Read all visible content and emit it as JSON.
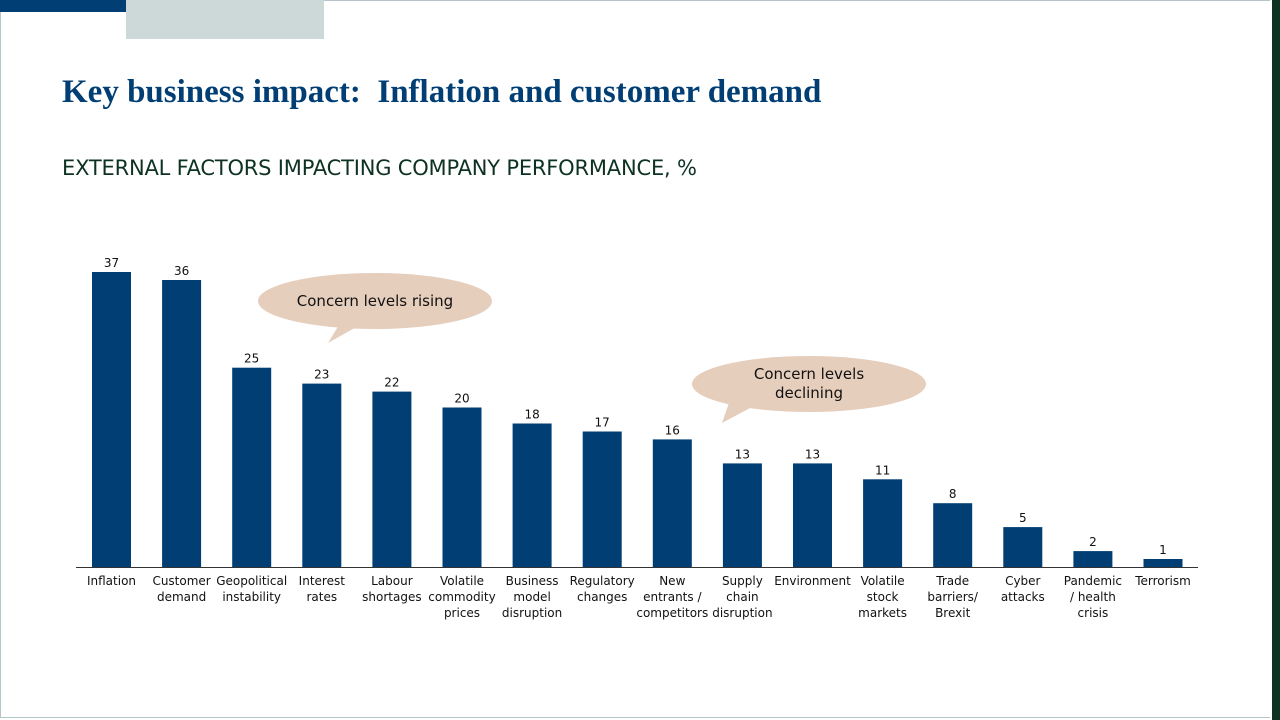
{
  "slide": {
    "title": "Key business impact:  Inflation and customer demand",
    "subtitle": "EXTERNAL FACTORS IMPACTING COMPANY PERFORMANCE, %"
  },
  "callouts": [
    {
      "text": "Concern levels rising"
    },
    {
      "text": "Concern levels\ndeclining"
    }
  ],
  "colors": {
    "bar": "#003e74",
    "callout_fill": "#e6cebd",
    "title": "#003e74",
    "subtitle": "#0d3222"
  },
  "chart_data": {
    "type": "bar",
    "title": "EXTERNAL FACTORS IMPACTING COMPANY PERFORMANCE, %",
    "categories": [
      "Inflation",
      "Customer demand",
      "Geopolitical instability",
      "Interest rates",
      "Labour shortages",
      "Volatile commodity prices",
      "Business model disruption",
      "Regulatory changes",
      "New entrants / competitors",
      "Supply chain disruption",
      "Environment",
      "Volatile stock markets",
      "Trade barriers/ Brexit",
      "Cyber attacks",
      "Pandemic / health crisis",
      "Terrorism"
    ],
    "category_lines": [
      [
        "Inflation"
      ],
      [
        "Customer",
        "demand"
      ],
      [
        "Geopolitical",
        "instability"
      ],
      [
        "Interest",
        "rates"
      ],
      [
        "Labour",
        "shortages"
      ],
      [
        "Volatile",
        "commodity",
        "prices"
      ],
      [
        "Business",
        "model",
        "disruption"
      ],
      [
        "Regulatory",
        "changes"
      ],
      [
        "New",
        "entrants /",
        "competitors"
      ],
      [
        "Supply",
        "chain",
        "disruption"
      ],
      [
        "Environment"
      ],
      [
        "Volatile",
        "stock",
        "markets"
      ],
      [
        "Trade",
        "barriers/",
        "Brexit"
      ],
      [
        "Cyber",
        "attacks"
      ],
      [
        "Pandemic",
        "/ health",
        "crisis"
      ],
      [
        "Terrorism"
      ]
    ],
    "values": [
      37,
      36,
      25,
      23,
      22,
      20,
      18,
      17,
      16,
      13,
      13,
      11,
      8,
      5,
      2,
      1
    ],
    "ylim": [
      0,
      37
    ],
    "grid": false,
    "legend": "none",
    "data_labels": true
  }
}
